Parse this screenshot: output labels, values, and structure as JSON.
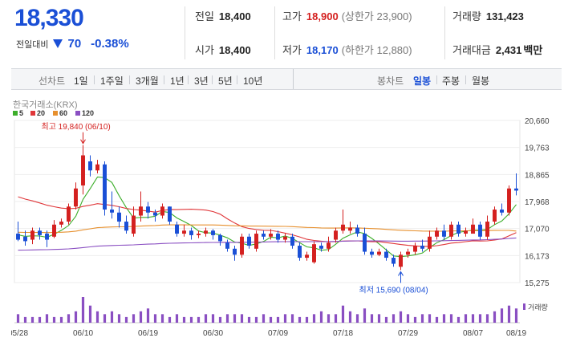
{
  "summary": {
    "price": "18,330",
    "change_label": "전일대비",
    "change_amount": "70",
    "change_percent": "-0.38%",
    "colors": {
      "up": "#d4201f",
      "down": "#1a4fd6"
    }
  },
  "stats": {
    "prev_close": {
      "label": "전일",
      "value": "18,400"
    },
    "open": {
      "label": "시가",
      "value": "18,400"
    },
    "high": {
      "label": "고가",
      "value": "18,900",
      "sub": "(상한가 23,900)"
    },
    "low": {
      "label": "저가",
      "value": "18,170",
      "sub": "(하한가 12,880)"
    },
    "volume": {
      "label": "거래량",
      "value": "131,423"
    },
    "turnover": {
      "label": "거래대금",
      "value": "2,431",
      "unit": "백만"
    }
  },
  "tabs": {
    "futures_label": "선차트",
    "futures": [
      "1일",
      "1주일",
      "3개월",
      "1년",
      "3년",
      "5년",
      "10년"
    ],
    "candle_label": "봉차트",
    "candle": [
      "일봉",
      "주봉",
      "월봉"
    ],
    "candle_active": "일봉"
  },
  "chart_data": {
    "type": "candlestick",
    "source": "한국거래소(KRX)",
    "legend": [
      {
        "name": "5",
        "color": "#3dae2b"
      },
      {
        "name": "20",
        "color": "#e0373a"
      },
      {
        "name": "60",
        "color": "#e7902e"
      },
      {
        "name": "120",
        "color": "#8a4fc2"
      }
    ],
    "y_ticks": [
      "20,660",
      "19,763",
      "18,865",
      "17,968",
      "17,070",
      "16,173",
      "15,275"
    ],
    "y_range": [
      15275,
      20660
    ],
    "x_ticks": [
      "05/28",
      "06/10",
      "06/19",
      "06/30",
      "07/09",
      "07/18",
      "07/29",
      "08/07",
      "08/19"
    ],
    "high_annotation": "최고 19,840 (06/10)",
    "low_annotation": "최저 15,690 (08/04)",
    "volume_label": "거래량",
    "candles": [
      [
        16900,
        16700,
        17300,
        16650
      ],
      [
        16800,
        16650,
        17000,
        16500
      ],
      [
        16700,
        17000,
        17100,
        16550
      ],
      [
        17000,
        16850,
        17100,
        16700
      ],
      [
        16900,
        16700,
        17000,
        16450
      ],
      [
        16800,
        17200,
        17350,
        16750
      ],
      [
        17200,
        17300,
        17400,
        17100
      ],
      [
        17300,
        17800,
        17900,
        17200
      ],
      [
        17800,
        18400,
        18600,
        17700
      ],
      [
        18500,
        19500,
        19840,
        18200
      ],
      [
        19300,
        19000,
        19500,
        18800
      ],
      [
        19000,
        19200,
        19350,
        18900
      ],
      [
        19200,
        17700,
        19300,
        17500
      ],
      [
        17700,
        17600,
        18300,
        17400
      ],
      [
        17600,
        17300,
        17800,
        17100
      ],
      [
        17300,
        17000,
        17500,
        16900
      ],
      [
        16900,
        17500,
        17800,
        16800
      ],
      [
        17500,
        17800,
        18300,
        17300
      ],
      [
        17800,
        17600,
        17950,
        17400
      ],
      [
        17600,
        17500,
        17700,
        17300
      ],
      [
        17500,
        17800,
        17900,
        17400
      ],
      [
        17800,
        17300,
        17800,
        17200
      ],
      [
        17200,
        16900,
        17300,
        16800
      ],
      [
        16900,
        17000,
        17200,
        16800
      ],
      [
        17000,
        16850,
        17100,
        16700
      ],
      [
        16850,
        16900,
        17000,
        16750
      ],
      [
        16900,
        17000,
        17100,
        16800
      ],
      [
        17000,
        16850,
        17050,
        16700
      ],
      [
        16850,
        16650,
        16900,
        16500
      ],
      [
        16600,
        16400,
        16700,
        16300
      ],
      [
        16400,
        16200,
        16500,
        16000
      ],
      [
        16200,
        16800,
        16900,
        16100
      ],
      [
        16800,
        16500,
        16900,
        16400
      ],
      [
        16400,
        16900,
        17000,
        16300
      ],
      [
        16900,
        16800,
        17000,
        16700
      ],
      [
        16800,
        16900,
        17050,
        16700
      ],
      [
        16900,
        16700,
        17000,
        16600
      ],
      [
        16700,
        16800,
        16900,
        16600
      ],
      [
        16800,
        16500,
        16900,
        16400
      ],
      [
        16500,
        16100,
        16600,
        16000
      ],
      [
        16100,
        16200,
        16300,
        16000
      ],
      [
        15950,
        16550,
        16650,
        15900
      ],
      [
        16500,
        16400,
        16600,
        16300
      ],
      [
        16400,
        16600,
        16800,
        16300
      ],
      [
        16700,
        17000,
        17100,
        16600
      ],
      [
        17000,
        17200,
        17700,
        16900
      ],
      [
        17000,
        17100,
        17300,
        16900
      ],
      [
        17100,
        16900,
        17200,
        16800
      ],
      [
        16900,
        16300,
        17100,
        16200
      ],
      [
        16300,
        16200,
        16400,
        16100
      ],
      [
        16200,
        16300,
        16400,
        16150
      ],
      [
        16300,
        16100,
        16400,
        16000
      ],
      [
        16100,
        15900,
        16200,
        15800
      ],
      [
        15800,
        16200,
        16300,
        15690
      ],
      [
        16200,
        16300,
        16400,
        16100
      ],
      [
        16300,
        16500,
        16600,
        16200
      ],
      [
        16500,
        16400,
        16700,
        16300
      ],
      [
        16400,
        16800,
        17000,
        16300
      ],
      [
        16800,
        17000,
        17100,
        16700
      ],
      [
        17000,
        16800,
        17200,
        16700
      ],
      [
        16800,
        17200,
        17300,
        16700
      ],
      [
        17200,
        16900,
        17300,
        16800
      ],
      [
        16900,
        17000,
        17100,
        16800
      ],
      [
        16900,
        17200,
        17400,
        16900
      ],
      [
        17200,
        16800,
        17300,
        16700
      ],
      [
        16800,
        17300,
        17500,
        16700
      ],
      [
        17300,
        17700,
        17800,
        17200
      ],
      [
        17700,
        17600,
        17900,
        17500
      ],
      [
        17600,
        18400,
        18500,
        17500
      ],
      [
        18400,
        18330,
        18900,
        18170
      ]
    ],
    "volumes": [
      3,
      2,
      2,
      2,
      3,
      2,
      2,
      3,
      4,
      9,
      6,
      4,
      3,
      4,
      3,
      2,
      3,
      4,
      5,
      3,
      3,
      2,
      3,
      2,
      2,
      2,
      3,
      3,
      2,
      3,
      3,
      3,
      2,
      2,
      3,
      2,
      2,
      3,
      3,
      2,
      2,
      3,
      4,
      3,
      3,
      6,
      4,
      3,
      5,
      3,
      3,
      2,
      3,
      4,
      3,
      2,
      3,
      3,
      2,
      3,
      3,
      2,
      3,
      3,
      3,
      3,
      4,
      5,
      6,
      5
    ]
  }
}
